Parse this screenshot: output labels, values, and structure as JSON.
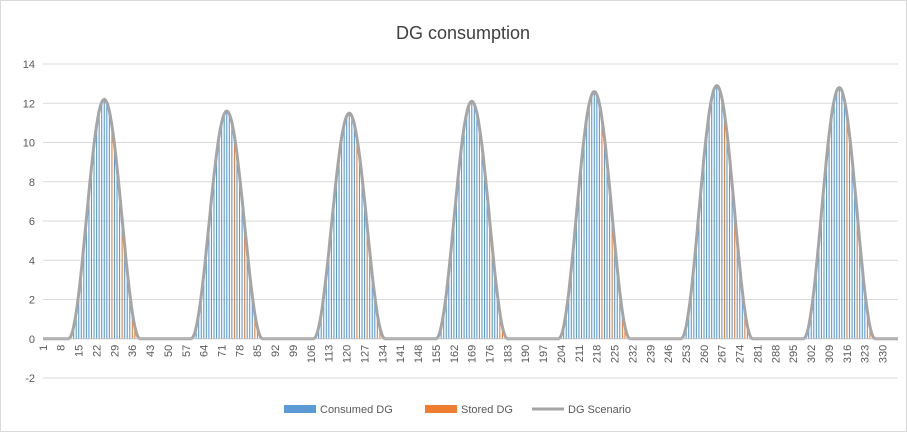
{
  "chart_data": {
    "type": "area",
    "title": "DG consumption",
    "xlabel": "",
    "ylabel": "",
    "ylim": [
      -2,
      14
    ],
    "yticks": [
      -2,
      0,
      2,
      4,
      6,
      8,
      10,
      12,
      14
    ],
    "xlim": [
      1,
      336
    ],
    "xtick_labels": [
      "1",
      "8",
      "15",
      "22",
      "29",
      "36",
      "43",
      "50",
      "57",
      "64",
      "71",
      "78",
      "85",
      "92",
      "99",
      "106",
      "113",
      "120",
      "127",
      "134",
      "141",
      "148",
      "155",
      "162",
      "169",
      "176",
      "183",
      "190",
      "197",
      "204",
      "211",
      "218",
      "225",
      "232",
      "239",
      "246",
      "253",
      "260",
      "267",
      "274",
      "281",
      "288",
      "295",
      "302",
      "309",
      "316",
      "323",
      "330"
    ],
    "grid": "horizontal",
    "legend_position": "bottom",
    "series": [
      {
        "name": "Consumed DG",
        "color": "#5b9bd5",
        "style": "thin vertical bars"
      },
      {
        "name": "Stored DG",
        "color": "#ed7d31",
        "style": "thin vertical bars"
      },
      {
        "name": "DG Scenario",
        "color": "#a5a5a5",
        "style": "line",
        "peaks": [
          {
            "start": 11,
            "peak_x": 25,
            "peak_y": 12.2,
            "end": 39
          },
          {
            "start": 59,
            "peak_x": 73,
            "peak_y": 11.6,
            "end": 87
          },
          {
            "start": 107,
            "peak_x": 121,
            "peak_y": 11.5,
            "end": 135
          },
          {
            "start": 155,
            "peak_x": 169,
            "peak_y": 12.1,
            "end": 183
          },
          {
            "start": 203,
            "peak_x": 217,
            "peak_y": 12.6,
            "end": 231
          },
          {
            "start": 251,
            "peak_x": 265,
            "peak_y": 12.9,
            "end": 279
          },
          {
            "start": 299,
            "peak_x": 313,
            "peak_y": 12.8,
            "end": 327
          }
        ]
      }
    ]
  }
}
